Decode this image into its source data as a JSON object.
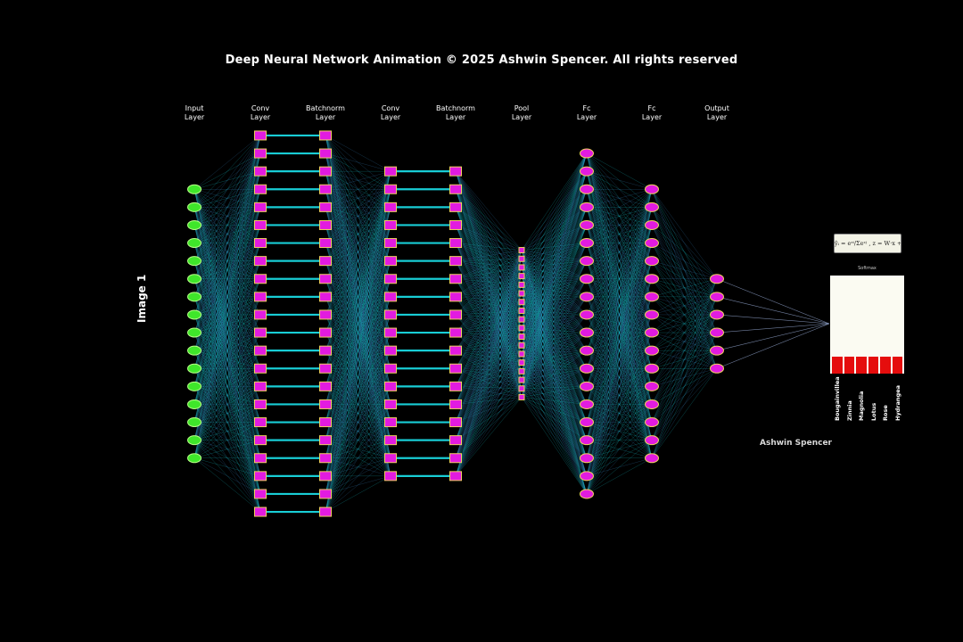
{
  "title": "Deep Neural Network Animation © 2025 Ashwin Spencer. All rights reserved",
  "side_label": "Image 1",
  "author": "Ashwin Spencer",
  "formula_text": "ŷᵢ = eᶻⁱ/Σeᶻʲ ,  z = W·x + b",
  "softmax": {
    "title": "Softmax",
    "classes": [
      "Bougainvillea",
      "Zinnia",
      "Magnolia",
      "Lotus",
      "Rose",
      "Hydrangea"
    ],
    "probabilities": [
      0.17,
      0.17,
      0.17,
      0.17,
      0.17,
      0.17
    ],
    "bar_color": "#e50d0d"
  },
  "colors": {
    "background": "#000000",
    "input_node": "#3fe62a",
    "node_fill": "#e21be0",
    "node_edge": "#f0d060",
    "connection": "#19d8e0"
  },
  "layers": [
    {
      "label": "Input\nLayer",
      "nodes": 16,
      "shape": "ellipse"
    },
    {
      "label": "Conv\nLayer",
      "nodes": 22,
      "shape": "square"
    },
    {
      "label": "Batchnorm\nLayer",
      "nodes": 22,
      "shape": "square"
    },
    {
      "label": "Conv\nLayer",
      "nodes": 18,
      "shape": "square"
    },
    {
      "label": "Batchnorm\nLayer",
      "nodes": 18,
      "shape": "square"
    },
    {
      "label": "Pool\nLayer",
      "nodes": 18,
      "shape": "small-square"
    },
    {
      "label": "Fc\nLayer",
      "nodes": 20,
      "shape": "ellipse"
    },
    {
      "label": "Fc\nLayer",
      "nodes": 16,
      "shape": "ellipse"
    },
    {
      "label": "Output\nLayer",
      "nodes": 6,
      "shape": "ellipse"
    }
  ]
}
